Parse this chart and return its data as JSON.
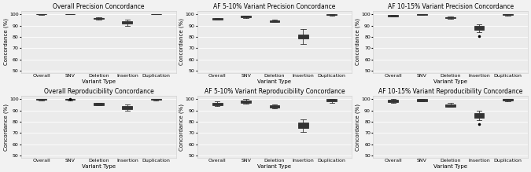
{
  "titles": [
    "Overall Precision Concordance",
    "AF 5-10% Variant Precision Concordance",
    "AF 10-15% Variant Precision Concordance",
    "Overall Reproducibility Concordance",
    "AF 5-10% Variant Reproducibility Concordance",
    "AF 10-15% Variant Reproducibility Concordance"
  ],
  "categories": [
    "Overall",
    "SNV",
    "Deletion",
    "Insertion",
    "Duplication"
  ],
  "ylabel": "Concordance (%)",
  "xlabel": "Variant Type",
  "ylim": [
    48,
    103
  ],
  "yticks": [
    50,
    60,
    70,
    80,
    90,
    100
  ],
  "background_color": "#ebebeb",
  "fig_facecolor": "#f2f2f2",
  "plots": [
    {
      "name": "Overall Precision Concordance",
      "boxes": [
        {
          "q1": 99.9,
          "median": 100.0,
          "q3": 100.0,
          "whislo": 99.7,
          "whishi": 100.0,
          "fliers": []
        },
        {
          "q1": 100.0,
          "median": 100.0,
          "q3": 100.0,
          "whislo": 100.0,
          "whishi": 100.0,
          "fliers": []
        },
        {
          "q1": 96.0,
          "median": 96.5,
          "q3": 97.0,
          "whislo": 95.5,
          "whishi": 97.5,
          "fliers": []
        },
        {
          "q1": 91.5,
          "median": 93.0,
          "q3": 94.0,
          "whislo": 89.5,
          "whishi": 95.5,
          "fliers": []
        },
        {
          "q1": 100.0,
          "median": 100.0,
          "q3": 100.0,
          "whislo": 100.0,
          "whishi": 100.0,
          "fliers": []
        }
      ]
    },
    {
      "name": "AF 5-10% Variant Precision Concordance",
      "boxes": [
        {
          "q1": 95.5,
          "median": 96.0,
          "q3": 96.5,
          "whislo": 95.0,
          "whishi": 97.0,
          "fliers": []
        },
        {
          "q1": 97.5,
          "median": 98.0,
          "q3": 98.5,
          "whislo": 97.0,
          "whishi": 99.0,
          "fliers": []
        },
        {
          "q1": 93.5,
          "median": 94.0,
          "q3": 94.5,
          "whislo": 93.0,
          "whishi": 95.0,
          "fliers": []
        },
        {
          "q1": 78.5,
          "median": 80.0,
          "q3": 82.0,
          "whislo": 74.0,
          "whishi": 87.0,
          "fliers": []
        },
        {
          "q1": 99.2,
          "median": 99.7,
          "q3": 100.0,
          "whislo": 98.8,
          "whishi": 100.0,
          "fliers": []
        }
      ]
    },
    {
      "name": "AF 10-15% Variant Precision Concordance",
      "boxes": [
        {
          "q1": 98.2,
          "median": 98.7,
          "q3": 99.2,
          "whislo": 97.8,
          "whishi": 99.7,
          "fliers": []
        },
        {
          "q1": 99.7,
          "median": 100.0,
          "q3": 100.0,
          "whislo": 99.3,
          "whishi": 100.0,
          "fliers": []
        },
        {
          "q1": 96.8,
          "median": 97.2,
          "q3": 97.7,
          "whislo": 96.3,
          "whishi": 98.2,
          "fliers": []
        },
        {
          "q1": 86.5,
          "median": 88.0,
          "q3": 89.5,
          "whislo": 84.0,
          "whishi": 91.0,
          "fliers": [
            80.5
          ]
        },
        {
          "q1": 99.5,
          "median": 100.0,
          "q3": 100.0,
          "whislo": 99.0,
          "whishi": 100.0,
          "fliers": []
        }
      ]
    },
    {
      "name": "Overall Reproducibility Concordance",
      "boxes": [
        {
          "q1": 99.5,
          "median": 100.0,
          "q3": 100.0,
          "whislo": 99.0,
          "whishi": 100.0,
          "fliers": []
        },
        {
          "q1": 99.5,
          "median": 100.0,
          "q3": 100.0,
          "whislo": 99.0,
          "whishi": 100.0,
          "fliers": [
            100.3
          ]
        },
        {
          "q1": 95.0,
          "median": 95.8,
          "q3": 96.5,
          "whislo": 94.5,
          "whishi": 97.0,
          "fliers": []
        },
        {
          "q1": 91.5,
          "median": 93.0,
          "q3": 94.0,
          "whislo": 90.0,
          "whishi": 95.5,
          "fliers": []
        },
        {
          "q1": 99.5,
          "median": 100.0,
          "q3": 100.0,
          "whislo": 99.0,
          "whishi": 100.0,
          "fliers": []
        }
      ]
    },
    {
      "name": "AF 5-10% Variant Reproducibility Concordance",
      "boxes": [
        {
          "q1": 95.0,
          "median": 96.0,
          "q3": 97.0,
          "whislo": 94.0,
          "whishi": 98.0,
          "fliers": []
        },
        {
          "q1": 97.0,
          "median": 98.0,
          "q3": 99.0,
          "whislo": 96.0,
          "whishi": 100.0,
          "fliers": []
        },
        {
          "q1": 92.5,
          "median": 93.5,
          "q3": 94.5,
          "whislo": 92.0,
          "whishi": 95.5,
          "fliers": []
        },
        {
          "q1": 74.5,
          "median": 77.0,
          "q3": 79.5,
          "whislo": 71.0,
          "whishi": 82.0,
          "fliers": []
        },
        {
          "q1": 98.0,
          "median": 99.0,
          "q3": 100.0,
          "whislo": 97.0,
          "whishi": 100.0,
          "fliers": []
        }
      ]
    },
    {
      "name": "AF 10-15% Variant Reproducibility Concordance",
      "boxes": [
        {
          "q1": 97.5,
          "median": 98.5,
          "q3": 99.5,
          "whislo": 97.0,
          "whishi": 100.0,
          "fliers": []
        },
        {
          "q1": 98.5,
          "median": 99.5,
          "q3": 100.0,
          "whislo": 98.0,
          "whishi": 100.0,
          "fliers": []
        },
        {
          "q1": 93.5,
          "median": 94.5,
          "q3": 95.5,
          "whislo": 93.0,
          "whishi": 96.5,
          "fliers": []
        },
        {
          "q1": 83.5,
          "median": 85.5,
          "q3": 87.5,
          "whislo": 81.5,
          "whishi": 89.5,
          "fliers": [
            78.0
          ]
        },
        {
          "q1": 99.0,
          "median": 100.0,
          "q3": 100.0,
          "whislo": 98.5,
          "whishi": 100.0,
          "fliers": []
        }
      ]
    }
  ]
}
